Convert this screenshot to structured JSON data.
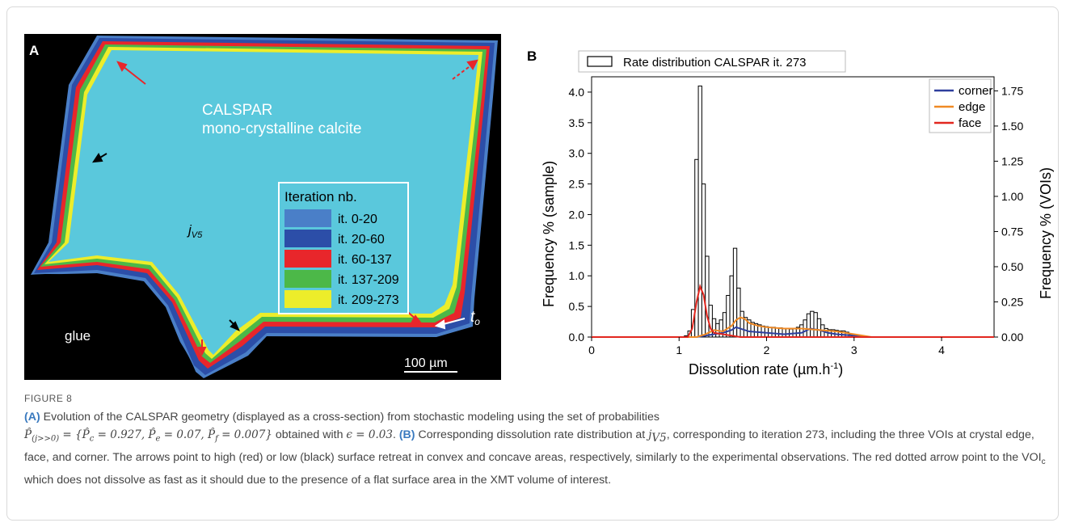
{
  "panel_a": {
    "letter": "A",
    "title_line1": "CALSPAR",
    "title_line2": "mono-crystalline calcite",
    "jv5": "j",
    "jv5_sub": "V5",
    "glue": "glue",
    "t0": "t",
    "t0_sub": "o",
    "scalebar": "100 µm",
    "legend_title": "Iteration nb.",
    "legend_items": [
      {
        "label": "it. 0-20",
        "color": "#4a7fc8"
      },
      {
        "label": "it. 20-60",
        "color": "#2c4ea8"
      },
      {
        "label": "it. 60-137",
        "color": "#e8262b"
      },
      {
        "label": "it. 137-209",
        "color": "#4cb848"
      },
      {
        "label": "it. 209-273",
        "color": "#eded2a"
      }
    ],
    "crystal_color": "#5ac8dc"
  },
  "panel_b": {
    "letter": "B"
  },
  "chart_data": {
    "type": "bar",
    "title": "",
    "hist_legend": "Rate distribution CALSPAR it. 273",
    "xlabel": "Dissolution rate (µm.h",
    "xlabel_sup": "-1",
    "xlabel_end": ")",
    "ylabel_left": "Frequency % (sample)",
    "ylabel_right": "Frequency % (VOIs)",
    "xlim": [
      0,
      4.6
    ],
    "ylim_left": [
      0,
      4.25
    ],
    "ylim_right": [
      0,
      1.85
    ],
    "xticks": [
      "0",
      "1",
      "2",
      "3",
      "4"
    ],
    "yticks_left": [
      "0.0",
      "0.5",
      "1.0",
      "1.5",
      "2.0",
      "2.5",
      "3.0",
      "3.5",
      "4.0"
    ],
    "yticks_right": [
      "0.00",
      "0.25",
      "0.50",
      "0.75",
      "1.00",
      "1.25",
      "1.50",
      "1.75"
    ],
    "hist": {
      "bin_width": 0.04,
      "bins": [
        [
          1.08,
          0.02
        ],
        [
          1.12,
          0.1
        ],
        [
          1.16,
          0.45
        ],
        [
          1.2,
          2.9
        ],
        [
          1.24,
          4.1
        ],
        [
          1.28,
          2.5
        ],
        [
          1.32,
          1.32
        ],
        [
          1.36,
          0.52
        ],
        [
          1.4,
          0.3
        ],
        [
          1.44,
          0.22
        ],
        [
          1.48,
          0.28
        ],
        [
          1.52,
          0.4
        ],
        [
          1.56,
          0.68
        ],
        [
          1.6,
          1.0
        ],
        [
          1.64,
          1.45
        ],
        [
          1.68,
          0.8
        ],
        [
          1.72,
          0.42
        ],
        [
          1.76,
          0.32
        ],
        [
          1.8,
          0.28
        ],
        [
          1.84,
          0.24
        ],
        [
          1.88,
          0.22
        ],
        [
          1.92,
          0.2
        ],
        [
          1.96,
          0.18
        ],
        [
          2.0,
          0.17
        ],
        [
          2.04,
          0.16
        ],
        [
          2.08,
          0.16
        ],
        [
          2.12,
          0.15
        ],
        [
          2.16,
          0.15
        ],
        [
          2.2,
          0.14
        ],
        [
          2.24,
          0.14
        ],
        [
          2.28,
          0.13
        ],
        [
          2.32,
          0.14
        ],
        [
          2.36,
          0.16
        ],
        [
          2.4,
          0.2
        ],
        [
          2.44,
          0.28
        ],
        [
          2.48,
          0.38
        ],
        [
          2.52,
          0.42
        ],
        [
          2.56,
          0.4
        ],
        [
          2.6,
          0.3
        ],
        [
          2.64,
          0.2
        ],
        [
          2.68,
          0.14
        ],
        [
          2.72,
          0.12
        ],
        [
          2.76,
          0.12
        ],
        [
          2.8,
          0.11
        ],
        [
          2.84,
          0.1
        ],
        [
          2.88,
          0.1
        ],
        [
          2.92,
          0.08
        ],
        [
          2.96,
          0.04
        ],
        [
          3.0,
          0.02
        ]
      ]
    },
    "series": [
      {
        "name": "corner",
        "color": "#2e3f9e",
        "x": [
          0,
          1.2,
          1.3,
          1.4,
          1.5,
          1.6,
          1.65,
          1.7,
          1.8,
          2.0,
          2.2,
          2.4,
          2.5,
          2.6,
          2.7,
          2.8,
          3.0,
          3.1,
          4.6
        ],
        "y": [
          0,
          0,
          0.01,
          0.02,
          0.03,
          0.05,
          0.07,
          0.06,
          0.04,
          0.03,
          0.02,
          0.03,
          0.06,
          0.05,
          0.03,
          0.02,
          0.01,
          0,
          0
        ]
      },
      {
        "name": "edge",
        "color": "#f08a24",
        "x": [
          0,
          1.2,
          1.3,
          1.4,
          1.5,
          1.6,
          1.65,
          1.7,
          1.75,
          1.8,
          1.9,
          2.0,
          2.2,
          2.4,
          2.6,
          2.8,
          3.0,
          3.2,
          4.6
        ],
        "y": [
          0,
          0,
          0.02,
          0.05,
          0.04,
          0.08,
          0.12,
          0.14,
          0.13,
          0.1,
          0.08,
          0.07,
          0.06,
          0.06,
          0.05,
          0.04,
          0.02,
          0,
          0
        ]
      },
      {
        "name": "face",
        "color": "#e2271f",
        "x": [
          0,
          1.1,
          1.15,
          1.2,
          1.24,
          1.28,
          1.32,
          1.36,
          1.4,
          1.5,
          1.6,
          1.7,
          4.6
        ],
        "y": [
          0,
          0,
          0.06,
          0.25,
          0.36,
          0.3,
          0.15,
          0.06,
          0.03,
          0.02,
          0.01,
          0,
          0
        ]
      }
    ]
  },
  "caption": {
    "fig_label": "FIGURE 8",
    "panel_a_tag": "(A)",
    "line1": " Evolution of the CALSPAR geometry (displayed as a cross-section) from stochastic modeling using the set of probabilities",
    "math1": "P̂",
    "math1_sub": "(j>>0)",
    "math1_rest": " = {P̂",
    "pc_sub": "c",
    "pc_val": " = 0.927, P̂",
    "pe_sub": "e",
    "pe_val": " = 0.07, P̂",
    "pf_sub": "f",
    "pf_val": " = 0.007}",
    "line2_a": " obtained with ",
    "eps": "ϵ = 0.03",
    "line2_b": ". ",
    "panel_b_tag": "(B)",
    "line2_c": " Corresponding dissolution rate distribution at ",
    "jv": "j",
    "jv_sub": "V5",
    "line2_d": ", corresponding to iteration 273, including the three VOIs at crystal edge, face, and corner. The arrows point to high (red) or low (black) surface retreat in convex and concave areas, respectively, similarly to the experimental observations. The red dotted arrow point to the VOI",
    "voi_sub": "c",
    "line2_e": " which does not dissolve as fast as it should due to the presence of a flat surface area in the XMT volume of interest."
  }
}
